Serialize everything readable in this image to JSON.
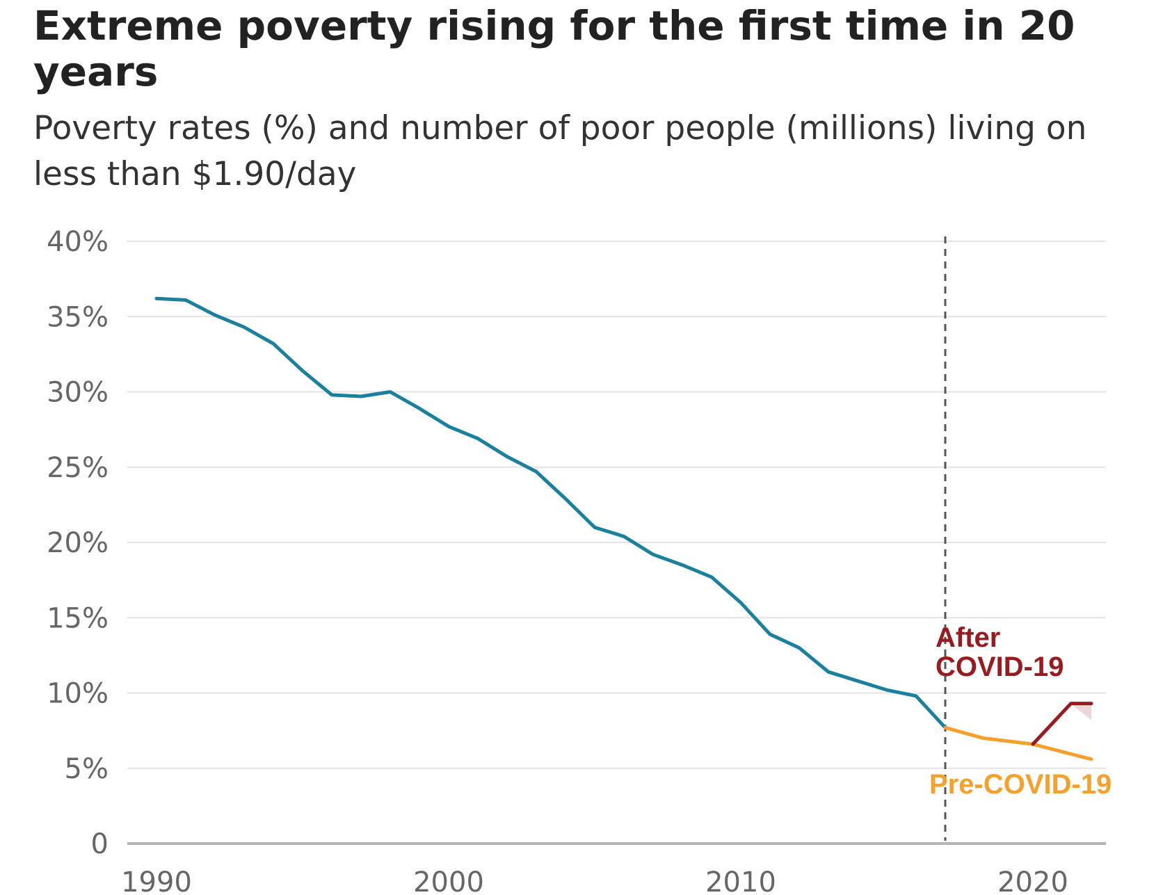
{
  "title": "Extreme poverty rising for the first time in 20 years",
  "subtitle": "Poverty rates (%) and number of poor people (millions) living on less than $1.90/day",
  "chart_data": {
    "type": "line",
    "title": "Extreme poverty rising for the first time in 20 years",
    "subtitle": "Poverty rates (%) and number of poor people (millions) living on less than $1.90/day",
    "xlabel": "",
    "ylabel": "",
    "xlim": [
      1989,
      2022.5
    ],
    "ylim": [
      0,
      40
    ],
    "x_ticks": [
      {
        "value": 1990,
        "label": "1990"
      },
      {
        "value": 2000,
        "label": "2000"
      },
      {
        "value": 2010,
        "label": "2010"
      },
      {
        "value": 2020,
        "label": "2020"
      }
    ],
    "y_ticks": [
      {
        "value": 0,
        "label": "0"
      },
      {
        "value": 5,
        "label": "5%"
      },
      {
        "value": 10,
        "label": "10%"
      },
      {
        "value": 15,
        "label": "15%"
      },
      {
        "value": 20,
        "label": "20%"
      },
      {
        "value": 25,
        "label": "25%"
      },
      {
        "value": 30,
        "label": "30%"
      },
      {
        "value": 35,
        "label": "35%"
      },
      {
        "value": 40,
        "label": "40%"
      }
    ],
    "grid": true,
    "legend": "none (lines labelled directly)",
    "series": [
      {
        "color": "#1a80a0",
        "x": [
          1990,
          1991,
          1992,
          1993,
          1994,
          1995,
          1996,
          1997,
          1998,
          1999,
          2000,
          2001,
          2002,
          2003,
          2004,
          2005,
          2006,
          2007,
          2008,
          2009,
          2010,
          2011,
          2012,
          2013,
          2014,
          2015,
          2016,
          2017
        ],
        "y": [
          36.2,
          36.1,
          35.1,
          34.3,
          33.2,
          31.4,
          29.8,
          29.7,
          30.0,
          28.9,
          27.7,
          26.9,
          25.7,
          24.7,
          22.9,
          21.0,
          20.4,
          19.2,
          18.5,
          17.7,
          16.0,
          13.9,
          13.0,
          11.4,
          10.8,
          10.2,
          9.8,
          7.7
        ]
      },
      {
        "name": "Pre-COVID-19",
        "color": "#f5a02a",
        "x": [
          2017,
          2018.3,
          2020,
          2022
        ],
        "y": [
          7.7,
          7.0,
          6.6,
          5.6
        ]
      },
      {
        "name": "After COVID-19",
        "color": "#9a1b1f",
        "x": [
          2020,
          2021.3,
          2022
        ],
        "y": [
          6.6,
          9.3,
          9.3
        ],
        "range_band": {
          "x": [
            2021.3,
            2022
          ],
          "upper": [
            9.3,
            9.3
          ],
          "lower": [
            9.3,
            8.2
          ]
        }
      }
    ],
    "reference_line": {
      "x": 2017,
      "style": "dashed",
      "color": "#555555"
    }
  }
}
